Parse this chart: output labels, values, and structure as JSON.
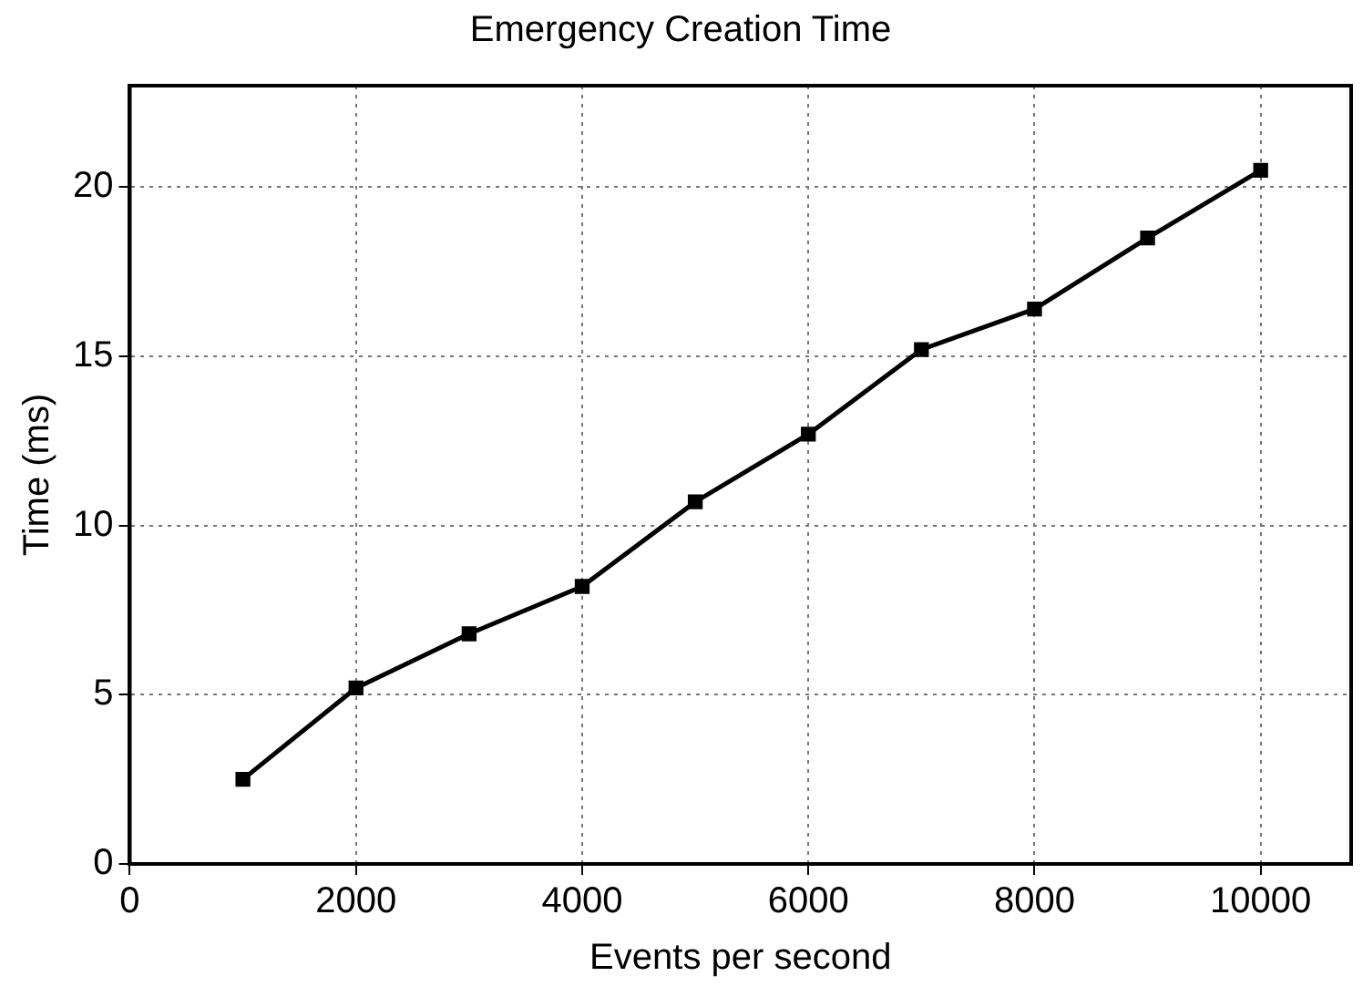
{
  "chart_data": {
    "type": "line",
    "title": "Emergency Creation Time",
    "xlabel": "Events per second",
    "ylabel": "Time (ms)",
    "x": [
      1000,
      2000,
      3000,
      4000,
      5000,
      6000,
      7000,
      8000,
      9000,
      10000
    ],
    "series": [
      {
        "color": "#000000",
        "values": [
          2.5,
          5.2,
          6.8,
          8.2,
          10.7,
          12.7,
          15.2,
          16.4,
          18.5,
          20.5
        ]
      }
    ],
    "xlim": [
      0,
      10800
    ],
    "xticks": [
      0,
      2000,
      4000,
      6000,
      8000,
      10000
    ],
    "ylim": [
      0,
      23
    ],
    "yticks": [
      0,
      5,
      10,
      15,
      20
    ],
    "grid": true,
    "legend": false,
    "marker": "square",
    "line_style": "solid"
  }
}
